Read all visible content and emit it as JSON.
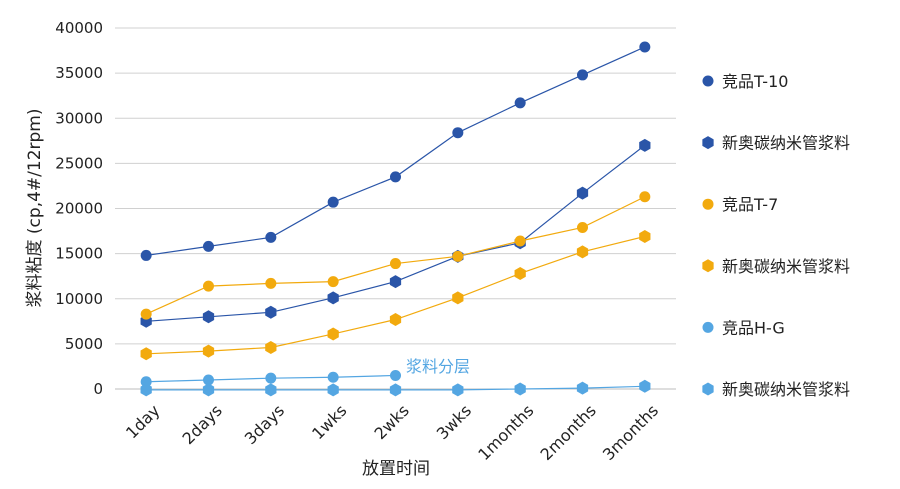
{
  "chart_data": {
    "type": "line",
    "xlabel": "放置时间",
    "ylabel": "浆料粘度 (cp,4#/12rpm)",
    "ylim": [
      0,
      40000
    ],
    "yticks": [
      0,
      5000,
      10000,
      15000,
      20000,
      25000,
      30000,
      35000,
      40000
    ],
    "grid": "horizontal",
    "legend_position": "right",
    "categories": [
      "1day",
      "2days",
      "3days",
      "1wks",
      "2wks",
      "3wks",
      "1months",
      "2months",
      "3months"
    ],
    "series": [
      {
        "name": "竞品T-10",
        "marker": "circle",
        "color": "#2a55a8",
        "values": [
          14800,
          15800,
          16800,
          20700,
          23500,
          28400,
          31700,
          34800,
          37900
        ]
      },
      {
        "name": "新奥碳纳米管浆料",
        "marker": "hexagon",
        "color": "#2a55a8",
        "values": [
          7500,
          8000,
          8500,
          10100,
          11900,
          14700,
          16200,
          21700,
          27000
        ]
      },
      {
        "name": "竞品T-7",
        "marker": "circle",
        "color": "#f2aa0e",
        "values": [
          8300,
          11400,
          11700,
          11900,
          13900,
          14700,
          16400,
          17900,
          21300
        ]
      },
      {
        "name": "新奥碳纳米管浆料",
        "marker": "hexagon",
        "color": "#f2aa0e",
        "values": [
          3900,
          4200,
          4600,
          6100,
          7700,
          10100,
          12800,
          15200,
          16900
        ]
      },
      {
        "name": "竞品H-G",
        "marker": "circle",
        "color": "#54a6e2",
        "values": [
          800,
          1000,
          1200,
          1300,
          1500,
          null,
          null,
          null,
          null
        ]
      },
      {
        "name": "新奥碳纳米管浆料",
        "marker": "hexagon",
        "color": "#54a6e2",
        "values": [
          -100,
          -100,
          -100,
          -100,
          -100,
          -100,
          0,
          100,
          300
        ]
      }
    ],
    "annotations": [
      {
        "text": "浆料分层",
        "color": "#54a6e2"
      }
    ]
  }
}
